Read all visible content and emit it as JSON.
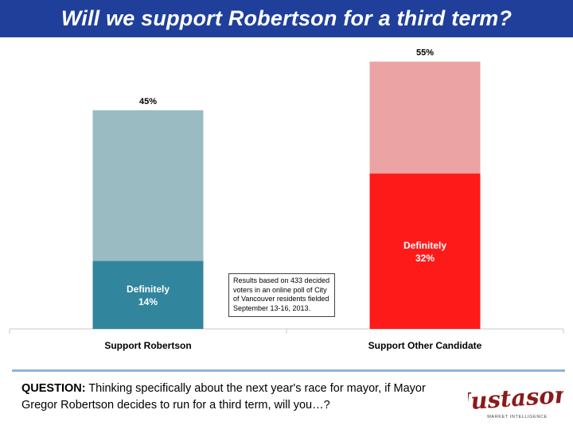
{
  "title": "Will we support Robertson for a third term?",
  "chart_data": {
    "type": "bar",
    "stacked": true,
    "categories": [
      "Support Robertson",
      "Support Other Candidate"
    ],
    "series": [
      {
        "name": "Definitely",
        "values": [
          14,
          32
        ],
        "colors": [
          "#31859c",
          "#ff1a1a"
        ],
        "labels": [
          "Definitely",
          "Definitely"
        ],
        "value_labels": [
          "14%",
          "32%"
        ]
      },
      {
        "values": [
          31,
          23
        ],
        "colors": [
          "#9bbbc3",
          "#eca3a3"
        ]
      }
    ],
    "totals": [
      45,
      55
    ],
    "total_labels": [
      "45%",
      "55%"
    ],
    "ylim": [
      0,
      60
    ],
    "grid": false
  },
  "note": {
    "lines": [
      "Results based on 433 decided",
      "voters in an online poll of City",
      "of Vancouver residents fielded",
      "September 13-16, 2013."
    ]
  },
  "question": {
    "lead": "QUESTION:",
    "line1": " Thinking specifically about the next year's race for mayor, if Mayor",
    "line2": "Gregor Robertson decides to run for a third term, will you…?"
  },
  "logo": {
    "name": "Justason",
    "tagline": "MARKET INTELLIGENCE",
    "icon": "justason-logo"
  }
}
